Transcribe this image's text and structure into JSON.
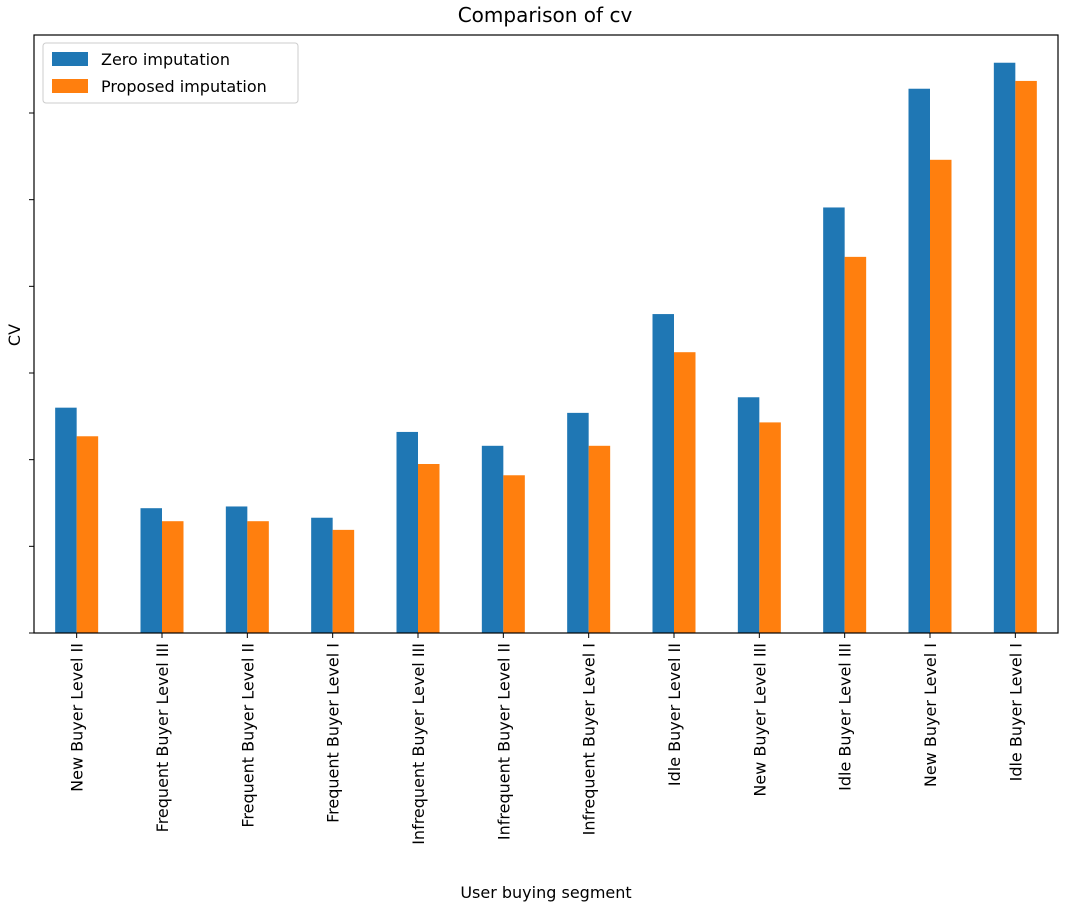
{
  "chart_data": {
    "type": "bar",
    "title": "Comparison of cv",
    "xlabel": "User buying segment",
    "ylabel": "CV",
    "categories": [
      "New Buyer Level II",
      "Frequent Buyer Level III",
      "Frequent Buyer Level II",
      "Frequent Buyer Level I",
      "Infrequent Buyer Level III",
      "Infrequent Buyer Level II",
      "Infrequent Buyer Level I",
      "Idle Buyer Level II",
      "New Buyer Level III",
      "Idle Buyer Level III",
      "New Buyer Level I",
      "Idle Buyer Level I"
    ],
    "series": [
      {
        "name": "Zero imputation",
        "color": "#1f77b4",
        "values": [
          2.6,
          1.44,
          1.46,
          1.33,
          2.32,
          2.16,
          2.54,
          3.68,
          2.72,
          4.91,
          6.28,
          6.58
        ]
      },
      {
        "name": "Proposed imputation",
        "color": "#ff7f0e",
        "values": [
          2.27,
          1.29,
          1.29,
          1.19,
          1.95,
          1.82,
          2.16,
          3.24,
          2.43,
          4.34,
          5.46,
          6.37
        ]
      }
    ],
    "ylim": [
      0,
      6.9
    ],
    "yticks": [
      0,
      1,
      2,
      3,
      4,
      5,
      6
    ],
    "ytick_labels_shown": false,
    "legend_position": "top-left",
    "grid": false
  }
}
